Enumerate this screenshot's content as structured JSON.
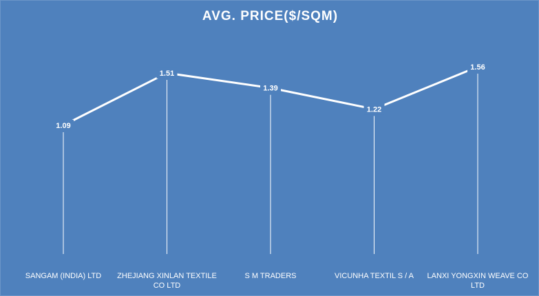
{
  "chart_data": {
    "type": "line",
    "title": "AVG. PRICE($/SQM)",
    "categories": [
      [
        "SANGAM (INDIA) LTD"
      ],
      [
        "ZHEJIANG XINLAN TEXTILE",
        "CO LTD"
      ],
      [
        "S M TRADERS"
      ],
      [
        "VICUNHA TEXTIL S / A"
      ],
      [
        "LANXI YONGXIN WEAVE CO",
        "LTD"
      ]
    ],
    "values": [
      1.09,
      1.51,
      1.39,
      1.22,
      1.56
    ],
    "value_labels": [
      "1.09",
      "1.51",
      "1.39",
      "1.22",
      "1.56"
    ],
    "grid": false,
    "legend": "none",
    "drop_lines": true,
    "colors": {
      "background": "#4f81bd",
      "line": "#ffffff",
      "text": "#ffffff"
    }
  }
}
